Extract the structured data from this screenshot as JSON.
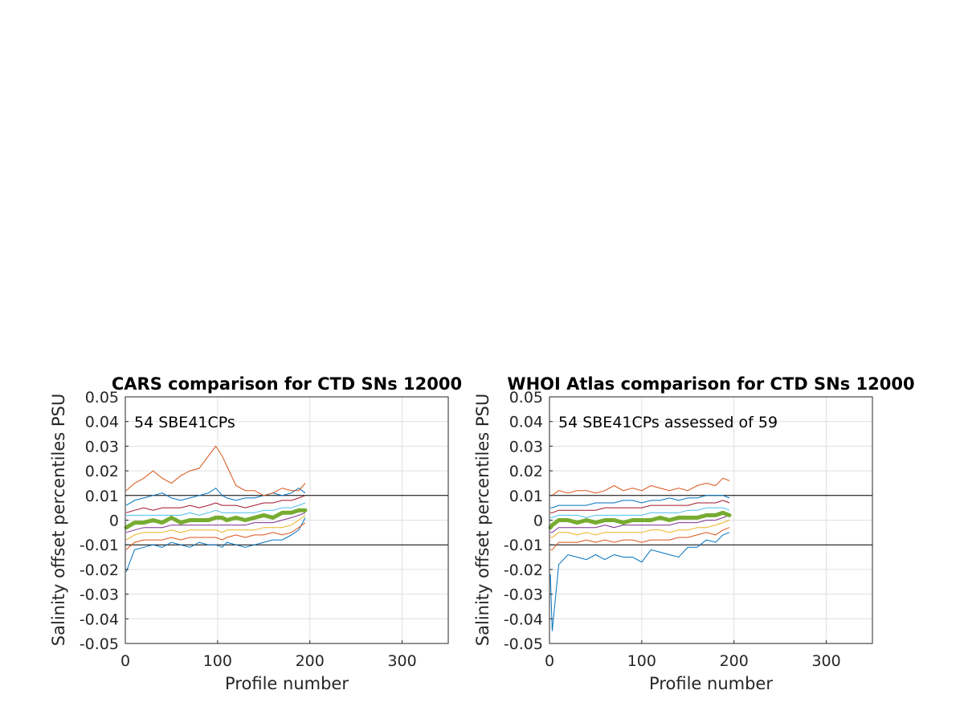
{
  "chart_data": [
    {
      "type": "line",
      "title": "CARS comparison for CTD SNs 12000",
      "xlabel": "Profile number",
      "ylabel": "Salinity offset percentiles PSU",
      "annotation": "54 SBE41CPs",
      "xlim": [
        0,
        350
      ],
      "ylim": [
        -0.05,
        0.05
      ],
      "xticks": [
        "0",
        "100",
        "200",
        "300"
      ],
      "yticks": [
        "-0.05",
        "-0.04",
        "-0.03",
        "-0.02",
        "-0.01",
        "0",
        "0.01",
        "0.02",
        "0.03",
        "0.04",
        "0.05"
      ],
      "grid": true,
      "reference_lines": [
        0.01,
        -0.01
      ],
      "x": [
        1,
        10,
        20,
        30,
        40,
        50,
        60,
        70,
        80,
        90,
        98,
        105,
        110,
        120,
        130,
        140,
        150,
        160,
        170,
        180,
        188,
        195
      ],
      "series": [
        {
          "color": "#0072BD",
          "values": [
            -0.021,
            -0.012,
            -0.011,
            -0.01,
            -0.011,
            -0.009,
            -0.01,
            -0.011,
            -0.009,
            -0.01,
            -0.01,
            -0.011,
            -0.009,
            -0.01,
            -0.011,
            -0.01,
            -0.009,
            -0.008,
            -0.008,
            -0.006,
            -0.004,
            0.001
          ]
        },
        {
          "color": "#D95319",
          "values": [
            -0.012,
            -0.009,
            -0.008,
            -0.008,
            -0.008,
            -0.007,
            -0.008,
            -0.007,
            -0.007,
            -0.007,
            -0.007,
            -0.008,
            -0.007,
            -0.006,
            -0.007,
            -0.006,
            -0.006,
            -0.005,
            -0.006,
            -0.005,
            -0.003,
            -0.001
          ]
        },
        {
          "color": "#EDB120",
          "values": [
            -0.008,
            -0.006,
            -0.005,
            -0.005,
            -0.005,
            -0.004,
            -0.005,
            -0.004,
            -0.004,
            -0.004,
            -0.004,
            -0.005,
            -0.004,
            -0.004,
            -0.004,
            -0.004,
            -0.003,
            -0.003,
            -0.003,
            -0.002,
            0.0,
            0.002
          ]
        },
        {
          "color": "#7E2F8E",
          "values": [
            -0.005,
            -0.004,
            -0.003,
            -0.003,
            -0.003,
            -0.002,
            -0.002,
            -0.002,
            -0.002,
            -0.002,
            -0.002,
            -0.002,
            -0.002,
            -0.002,
            -0.002,
            -0.001,
            -0.001,
            -0.001,
            0.0,
            0.001,
            0.002,
            0.003
          ]
        },
        {
          "color": "#77AC30",
          "values": [
            -0.003,
            -0.001,
            -0.001,
            0.0,
            -0.001,
            0.001,
            -0.001,
            0.0,
            0.0,
            0.0,
            0.001,
            0.001,
            0.0,
            0.001,
            0.0,
            0.001,
            0.002,
            0.001,
            0.003,
            0.003,
            0.004,
            0.004
          ]
        },
        {
          "color": "#4DBEEE",
          "values": [
            0.002,
            0.002,
            0.002,
            0.002,
            0.002,
            0.002,
            0.002,
            0.003,
            0.002,
            0.003,
            0.004,
            0.003,
            0.003,
            0.003,
            0.003,
            0.003,
            0.004,
            0.004,
            0.005,
            0.005,
            0.006,
            0.007
          ]
        },
        {
          "color": "#A2142F",
          "values": [
            0.003,
            0.004,
            0.005,
            0.004,
            0.005,
            0.005,
            0.005,
            0.006,
            0.005,
            0.006,
            0.007,
            0.006,
            0.006,
            0.006,
            0.005,
            0.006,
            0.007,
            0.007,
            0.008,
            0.008,
            0.009,
            0.01
          ]
        },
        {
          "color": "#0072BD",
          "values": [
            0.006,
            0.008,
            0.009,
            0.01,
            0.011,
            0.009,
            0.008,
            0.009,
            0.01,
            0.011,
            0.013,
            0.01,
            0.009,
            0.008,
            0.009,
            0.009,
            0.01,
            0.011,
            0.01,
            0.011,
            0.013,
            0.011
          ]
        },
        {
          "color": "#D95319",
          "values": [
            0.012,
            0.015,
            0.017,
            0.02,
            0.017,
            0.015,
            0.018,
            0.02,
            0.021,
            0.026,
            0.03,
            0.026,
            0.022,
            0.014,
            0.012,
            0.012,
            0.01,
            0.011,
            0.013,
            0.012,
            0.012,
            0.015
          ]
        }
      ],
      "median": {
        "color": "#77AC30",
        "values": [
          -0.003,
          -0.001,
          -0.001,
          0.0,
          -0.001,
          0.001,
          -0.001,
          0.0,
          0.0,
          0.0,
          0.001,
          0.001,
          0.0,
          0.001,
          0.0,
          0.001,
          0.002,
          0.001,
          0.003,
          0.003,
          0.004,
          0.004
        ]
      }
    },
    {
      "type": "line",
      "title": "WHOI Atlas comparison for CTD SNs 12000",
      "xlabel": "Profile number",
      "ylabel": "Salinity offset percentiles PSU",
      "annotation": "54 SBE41CPs assessed of 59",
      "xlim": [
        0,
        350
      ],
      "ylim": [
        -0.05,
        0.05
      ],
      "xticks": [
        "0",
        "100",
        "200",
        "300"
      ],
      "yticks": [
        "-0.05",
        "-0.04",
        "-0.03",
        "-0.02",
        "-0.01",
        "0",
        "0.01",
        "0.02",
        "0.03",
        "0.04",
        "0.05"
      ],
      "grid": true,
      "reference_lines": [
        0.01,
        -0.01
      ],
      "x": [
        1,
        3,
        10,
        20,
        30,
        40,
        50,
        60,
        70,
        80,
        90,
        100,
        110,
        120,
        130,
        140,
        150,
        160,
        170,
        180,
        188,
        195
      ],
      "series": [
        {
          "color": "#0072BD",
          "values": [
            -0.022,
            -0.045,
            -0.018,
            -0.014,
            -0.015,
            -0.016,
            -0.014,
            -0.016,
            -0.014,
            -0.015,
            -0.015,
            -0.017,
            -0.012,
            -0.013,
            -0.014,
            -0.015,
            -0.011,
            -0.011,
            -0.008,
            -0.009,
            -0.006,
            -0.005
          ]
        },
        {
          "color": "#D95319",
          "values": [
            -0.012,
            -0.012,
            -0.009,
            -0.009,
            -0.009,
            -0.008,
            -0.009,
            -0.008,
            -0.009,
            -0.008,
            -0.008,
            -0.009,
            -0.008,
            -0.008,
            -0.008,
            -0.007,
            -0.007,
            -0.006,
            -0.005,
            -0.006,
            -0.004,
            -0.003
          ]
        },
        {
          "color": "#EDB120",
          "values": [
            -0.007,
            -0.007,
            -0.005,
            -0.005,
            -0.006,
            -0.005,
            -0.006,
            -0.005,
            -0.005,
            -0.005,
            -0.005,
            -0.005,
            -0.004,
            -0.004,
            -0.005,
            -0.004,
            -0.004,
            -0.003,
            -0.003,
            -0.002,
            -0.001,
            0.0
          ]
        },
        {
          "color": "#7E2F8E",
          "values": [
            -0.005,
            -0.005,
            -0.003,
            -0.003,
            -0.003,
            -0.003,
            -0.003,
            -0.002,
            -0.003,
            -0.002,
            -0.002,
            -0.002,
            -0.002,
            -0.002,
            -0.002,
            -0.001,
            -0.001,
            -0.001,
            0.0,
            0.0,
            0.001,
            0.002
          ]
        },
        {
          "color": "#77AC30",
          "values": [
            -0.003,
            -0.002,
            0.0,
            0.0,
            -0.001,
            0.0,
            -0.001,
            0.0,
            0.0,
            -0.001,
            0.0,
            0.0,
            0.0,
            0.001,
            0.0,
            0.001,
            0.001,
            0.001,
            0.002,
            0.002,
            0.003,
            0.002
          ]
        },
        {
          "color": "#4DBEEE",
          "values": [
            0.001,
            0.001,
            0.002,
            0.002,
            0.002,
            0.001,
            0.002,
            0.002,
            0.002,
            0.002,
            0.002,
            0.002,
            0.003,
            0.003,
            0.003,
            0.003,
            0.004,
            0.004,
            0.005,
            0.005,
            0.005,
            0.004
          ]
        },
        {
          "color": "#A2142F",
          "values": [
            0.003,
            0.003,
            0.004,
            0.004,
            0.004,
            0.004,
            0.004,
            0.005,
            0.005,
            0.005,
            0.005,
            0.005,
            0.006,
            0.006,
            0.006,
            0.006,
            0.006,
            0.007,
            0.007,
            0.007,
            0.008,
            0.007
          ]
        },
        {
          "color": "#0072BD",
          "values": [
            0.005,
            0.005,
            0.006,
            0.006,
            0.006,
            0.006,
            0.007,
            0.007,
            0.007,
            0.008,
            0.008,
            0.007,
            0.008,
            0.008,
            0.009,
            0.008,
            0.009,
            0.009,
            0.01,
            0.01,
            0.01,
            0.009
          ]
        },
        {
          "color": "#D95319",
          "values": [
            0.01,
            0.01,
            0.012,
            0.011,
            0.012,
            0.012,
            0.011,
            0.012,
            0.014,
            0.012,
            0.013,
            0.012,
            0.014,
            0.013,
            0.012,
            0.013,
            0.012,
            0.014,
            0.015,
            0.014,
            0.017,
            0.016
          ]
        }
      ],
      "median": {
        "color": "#77AC30",
        "values": [
          -0.003,
          -0.002,
          0.0,
          0.0,
          -0.001,
          0.0,
          -0.001,
          0.0,
          0.0,
          -0.001,
          0.0,
          0.0,
          0.0,
          0.001,
          0.0,
          0.001,
          0.001,
          0.001,
          0.002,
          0.002,
          0.003,
          0.002
        ]
      }
    }
  ]
}
